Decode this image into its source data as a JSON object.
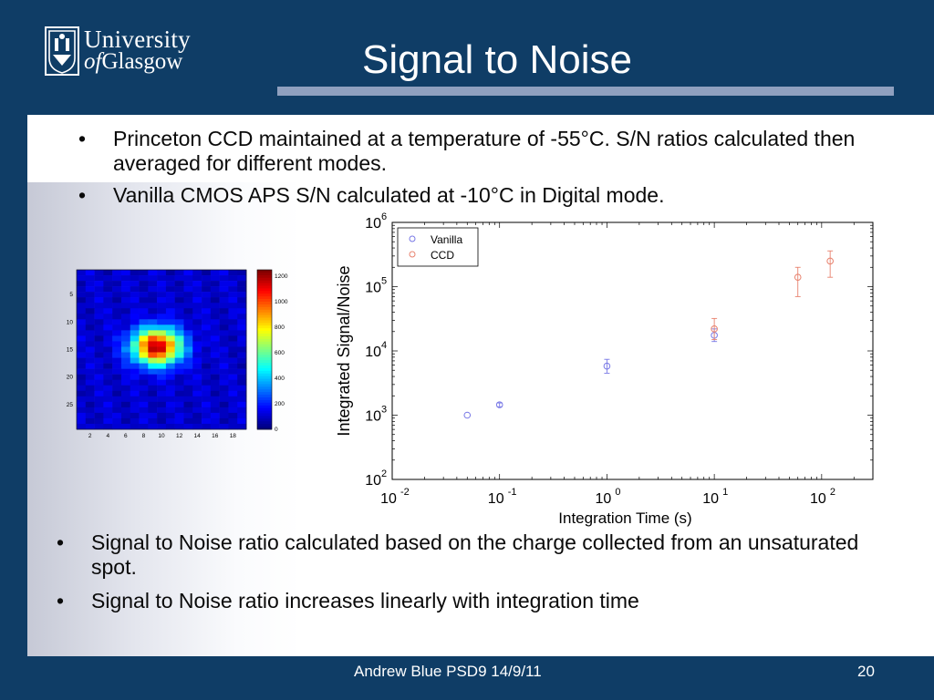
{
  "slide": {
    "title": "Signal to Noise",
    "logo": {
      "line1": "University",
      "line2a": "of",
      "line2b": "Glasgow"
    },
    "bullets_top": [
      "Princeton CCD maintained at a temperature of -55°C.  S/N ratios calculated then averaged for different modes.",
      "Vanilla CMOS APS S/N calculated at -10°C in Digital mode."
    ],
    "bullets_bottom": [
      "Signal to Noise ratio calculated based on the charge collected from an unsaturated spot.",
      "Signal to Noise ratio increases linearly with integration time"
    ],
    "bullet_char": "•",
    "footer": {
      "left": "Andrew Blue PSD9  14/9/11",
      "page": "20"
    }
  },
  "colors": {
    "background": "#0f3d66",
    "title_bar": "#8fa0bf",
    "vanilla": "#7878e6",
    "ccd": "#e8826e"
  },
  "chart_data": [
    {
      "type": "heatmap",
      "y_ticks": [
        "5",
        "10",
        "15",
        "20",
        "25"
      ],
      "x_ticks": [
        "2",
        "4",
        "6",
        "8",
        "10",
        "12",
        "14",
        "16",
        "18"
      ],
      "colorbar_ticks": [
        "1200",
        "1000",
        "800",
        "600",
        "400",
        "200",
        "0"
      ],
      "clim": [
        0,
        1250
      ],
      "grid_size": [
        19,
        29
      ],
      "peak": {
        "x": 9.5,
        "y": 14.5,
        "value": 1200
      }
    },
    {
      "type": "scatter",
      "xlabel": "Integration Time (s)",
      "ylabel": "Integrated Signal/Noise",
      "xscale": "log",
      "yscale": "log",
      "xlim": [
        0.01,
        300
      ],
      "ylim": [
        100,
        1000000
      ],
      "x_ticks": [
        {
          "base": "10",
          "exp": "-2"
        },
        {
          "base": "10",
          "exp": "-1"
        },
        {
          "base": "10",
          "exp": "0"
        },
        {
          "base": "10",
          "exp": "1"
        },
        {
          "base": "10",
          "exp": "2"
        }
      ],
      "y_ticks": [
        {
          "base": "10",
          "exp": "2"
        },
        {
          "base": "10",
          "exp": "3"
        },
        {
          "base": "10",
          "exp": "4"
        },
        {
          "base": "10",
          "exp": "5"
        },
        {
          "base": "10",
          "exp": "6"
        }
      ],
      "legend_position": "top-left",
      "series": [
        {
          "name": "Vanilla",
          "marker": "circle",
          "points": [
            {
              "x": 0.05,
              "y": 1000,
              "yerr": [
                1000,
                1000
              ]
            },
            {
              "x": 0.1,
              "y": 1450,
              "yerr": [
                1350,
                1550
              ]
            },
            {
              "x": 1,
              "y": 5800,
              "yerr": [
                4500,
                7400
              ]
            },
            {
              "x": 10,
              "y": 17500,
              "yerr": [
                14000,
                22000
              ]
            }
          ]
        },
        {
          "name": "CCD",
          "marker": "circle",
          "points": [
            {
              "x": 10,
              "y": 22000,
              "yerr": [
                15000,
                32000
              ]
            },
            {
              "x": 60,
              "y": 140000,
              "yerr": [
                70000,
                200000
              ]
            },
            {
              "x": 120,
              "y": 250000,
              "yerr": [
                140000,
                360000
              ]
            }
          ]
        }
      ]
    }
  ]
}
